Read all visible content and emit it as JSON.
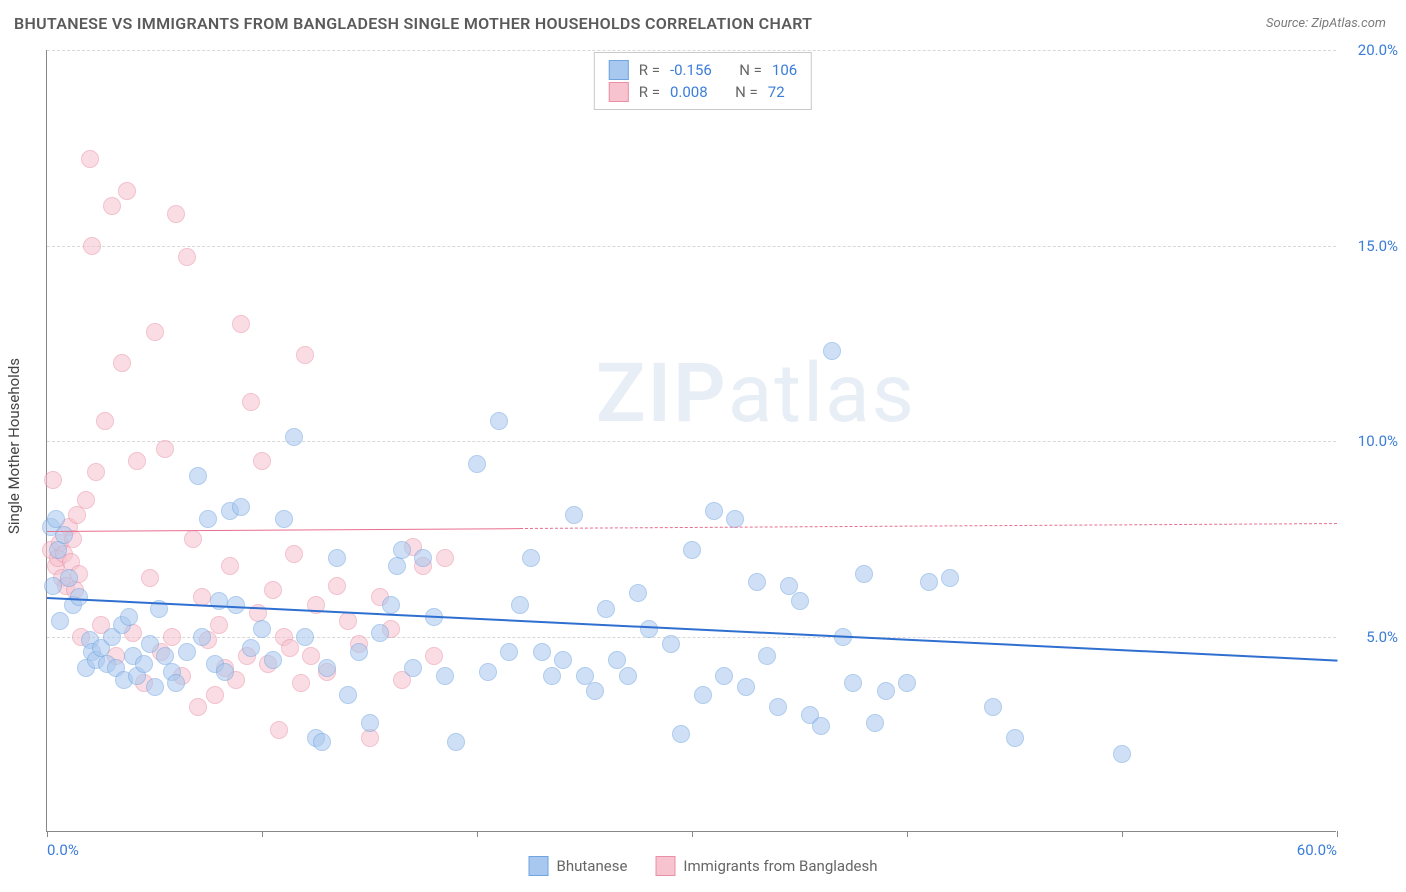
{
  "title": "BHUTANESE VS IMMIGRANTS FROM BANGLADESH SINGLE MOTHER HOUSEHOLDS CORRELATION CHART",
  "source": "Source: ZipAtlas.com",
  "y_axis_title": "Single Mother Households",
  "watermark": {
    "zip": "ZIP",
    "atlas": "atlas"
  },
  "chart": {
    "type": "scatter",
    "xlim": [
      0,
      60
    ],
    "ylim": [
      0,
      20
    ],
    "x_ticks": [
      0,
      10,
      20,
      30,
      40,
      50,
      60
    ],
    "y_ticks": [
      5,
      10,
      15,
      20
    ],
    "x_tick_labels": {
      "0": "0.0%",
      "60": "60.0%"
    },
    "y_tick_labels": {
      "5": "5.0%",
      "10": "10.0%",
      "15": "15.0%",
      "20": "20.0%"
    },
    "background_color": "#ffffff",
    "grid_color": "#d8d8d8",
    "axis_color": "#888888",
    "tick_label_color": "#3b7dd8",
    "tick_fontsize": 15,
    "point_radius": 9,
    "point_opacity": 0.55,
    "series": [
      {
        "key": "bhutanese",
        "label": "Bhutanese",
        "fill": "#a8c8ef",
        "stroke": "#6fa4e0",
        "R": "-0.156",
        "N": "106",
        "trend": {
          "y_at_x0": 6.0,
          "y_at_x60": 4.4,
          "color": "#2f6fd0",
          "width": 2.5,
          "dash_from_x": null
        },
        "points": [
          [
            0.2,
            7.8
          ],
          [
            0.3,
            6.3
          ],
          [
            0.4,
            8.0
          ],
          [
            0.5,
            7.2
          ],
          [
            0.6,
            5.4
          ],
          [
            0.8,
            7.6
          ],
          [
            1.0,
            6.5
          ],
          [
            1.2,
            5.8
          ],
          [
            1.5,
            6.0
          ],
          [
            1.8,
            4.2
          ],
          [
            2.0,
            4.9
          ],
          [
            2.1,
            4.6
          ],
          [
            2.3,
            4.4
          ],
          [
            2.5,
            4.7
          ],
          [
            2.8,
            4.3
          ],
          [
            3.0,
            5.0
          ],
          [
            3.2,
            4.2
          ],
          [
            3.5,
            5.3
          ],
          [
            3.6,
            3.9
          ],
          [
            3.8,
            5.5
          ],
          [
            4.0,
            4.5
          ],
          [
            4.2,
            4.0
          ],
          [
            4.5,
            4.3
          ],
          [
            4.8,
            4.8
          ],
          [
            5.0,
            3.7
          ],
          [
            5.2,
            5.7
          ],
          [
            5.5,
            4.5
          ],
          [
            5.8,
            4.1
          ],
          [
            6.0,
            3.8
          ],
          [
            6.5,
            4.6
          ],
          [
            7.0,
            9.1
          ],
          [
            7.2,
            5.0
          ],
          [
            7.5,
            8.0
          ],
          [
            7.8,
            4.3
          ],
          [
            8.0,
            5.9
          ],
          [
            8.3,
            4.1
          ],
          [
            8.5,
            8.2
          ],
          [
            8.8,
            5.8
          ],
          [
            9.0,
            8.3
          ],
          [
            9.5,
            4.7
          ],
          [
            10.0,
            5.2
          ],
          [
            10.5,
            4.4
          ],
          [
            11.0,
            8.0
          ],
          [
            11.5,
            10.1
          ],
          [
            12.0,
            5.0
          ],
          [
            12.5,
            2.4
          ],
          [
            12.8,
            2.3
          ],
          [
            13.0,
            4.2
          ],
          [
            13.5,
            7.0
          ],
          [
            14.0,
            3.5
          ],
          [
            14.5,
            4.6
          ],
          [
            15.0,
            2.8
          ],
          [
            15.5,
            5.1
          ],
          [
            16.0,
            5.8
          ],
          [
            16.3,
            6.8
          ],
          [
            16.5,
            7.2
          ],
          [
            17.0,
            4.2
          ],
          [
            17.5,
            7.0
          ],
          [
            18.0,
            5.5
          ],
          [
            18.5,
            4.0
          ],
          [
            19.0,
            2.3
          ],
          [
            20.0,
            9.4
          ],
          [
            20.5,
            4.1
          ],
          [
            21.0,
            10.5
          ],
          [
            21.5,
            4.6
          ],
          [
            22.0,
            5.8
          ],
          [
            22.5,
            7.0
          ],
          [
            23.0,
            4.6
          ],
          [
            23.5,
            4.0
          ],
          [
            24.0,
            4.4
          ],
          [
            24.5,
            8.1
          ],
          [
            25.0,
            4.0
          ],
          [
            25.5,
            3.6
          ],
          [
            26.0,
            5.7
          ],
          [
            26.5,
            4.4
          ],
          [
            27.0,
            4.0
          ],
          [
            27.5,
            6.1
          ],
          [
            28.0,
            5.2
          ],
          [
            29.0,
            4.8
          ],
          [
            29.5,
            2.5
          ],
          [
            30.0,
            7.2
          ],
          [
            30.5,
            3.5
          ],
          [
            31.0,
            8.2
          ],
          [
            31.5,
            4.0
          ],
          [
            32.0,
            8.0
          ],
          [
            32.5,
            3.7
          ],
          [
            33.0,
            6.4
          ],
          [
            33.5,
            4.5
          ],
          [
            34.0,
            3.2
          ],
          [
            34.5,
            6.3
          ],
          [
            35.0,
            5.9
          ],
          [
            35.5,
            3.0
          ],
          [
            36.0,
            2.7
          ],
          [
            36.5,
            12.3
          ],
          [
            37.0,
            5.0
          ],
          [
            37.5,
            3.8
          ],
          [
            38.0,
            6.6
          ],
          [
            38.5,
            2.8
          ],
          [
            39.0,
            3.6
          ],
          [
            40.0,
            3.8
          ],
          [
            41.0,
            6.4
          ],
          [
            42.0,
            6.5
          ],
          [
            44.0,
            3.2
          ],
          [
            45.0,
            2.4
          ],
          [
            50.0,
            2.0
          ]
        ]
      },
      {
        "key": "bangladesh",
        "label": "Immigrants from Bangladesh",
        "fill": "#f6c3cf",
        "stroke": "#eb8fa5",
        "R": "0.008",
        "N": "72",
        "trend": {
          "y_at_x0": 7.7,
          "y_at_x60": 7.9,
          "color": "#e86f8f",
          "width": 1.6,
          "dash_from_x": 22
        },
        "points": [
          [
            0.2,
            7.2
          ],
          [
            0.3,
            9.0
          ],
          [
            0.4,
            6.8
          ],
          [
            0.5,
            7.0
          ],
          [
            0.6,
            7.4
          ],
          [
            0.7,
            6.5
          ],
          [
            0.8,
            7.1
          ],
          [
            0.9,
            6.3
          ],
          [
            1.0,
            7.8
          ],
          [
            1.1,
            6.9
          ],
          [
            1.2,
            7.5
          ],
          [
            1.3,
            6.2
          ],
          [
            1.4,
            8.1
          ],
          [
            1.5,
            6.6
          ],
          [
            1.6,
            5.0
          ],
          [
            1.8,
            8.5
          ],
          [
            2.0,
            17.2
          ],
          [
            2.1,
            15.0
          ],
          [
            2.3,
            9.2
          ],
          [
            2.5,
            5.3
          ],
          [
            2.7,
            10.5
          ],
          [
            3.0,
            16.0
          ],
          [
            3.2,
            4.5
          ],
          [
            3.5,
            12.0
          ],
          [
            3.7,
            16.4
          ],
          [
            4.0,
            5.1
          ],
          [
            4.2,
            9.5
          ],
          [
            4.5,
            3.8
          ],
          [
            4.8,
            6.5
          ],
          [
            5.0,
            12.8
          ],
          [
            5.3,
            4.6
          ],
          [
            5.5,
            9.8
          ],
          [
            5.8,
            5.0
          ],
          [
            6.0,
            15.8
          ],
          [
            6.3,
            4.0
          ],
          [
            6.5,
            14.7
          ],
          [
            6.8,
            7.5
          ],
          [
            7.0,
            3.2
          ],
          [
            7.2,
            6.0
          ],
          [
            7.5,
            4.9
          ],
          [
            7.8,
            3.5
          ],
          [
            8.0,
            5.3
          ],
          [
            8.3,
            4.2
          ],
          [
            8.5,
            6.8
          ],
          [
            8.8,
            3.9
          ],
          [
            9.0,
            13.0
          ],
          [
            9.3,
            4.5
          ],
          [
            9.5,
            11.0
          ],
          [
            9.8,
            5.6
          ],
          [
            10.0,
            9.5
          ],
          [
            10.3,
            4.3
          ],
          [
            10.5,
            6.2
          ],
          [
            10.8,
            2.6
          ],
          [
            11.0,
            5.0
          ],
          [
            11.3,
            4.7
          ],
          [
            11.5,
            7.1
          ],
          [
            11.8,
            3.8
          ],
          [
            12.0,
            12.2
          ],
          [
            12.3,
            4.5
          ],
          [
            12.5,
            5.8
          ],
          [
            13.0,
            4.1
          ],
          [
            13.5,
            6.3
          ],
          [
            14.0,
            5.4
          ],
          [
            14.5,
            4.8
          ],
          [
            15.0,
            2.4
          ],
          [
            15.5,
            6.0
          ],
          [
            16.0,
            5.2
          ],
          [
            16.5,
            3.9
          ],
          [
            17.0,
            7.3
          ],
          [
            17.5,
            6.8
          ],
          [
            18.0,
            4.5
          ],
          [
            18.5,
            7.0
          ]
        ]
      }
    ]
  },
  "legend_top_labels": {
    "R": "R =",
    "N": "N ="
  }
}
